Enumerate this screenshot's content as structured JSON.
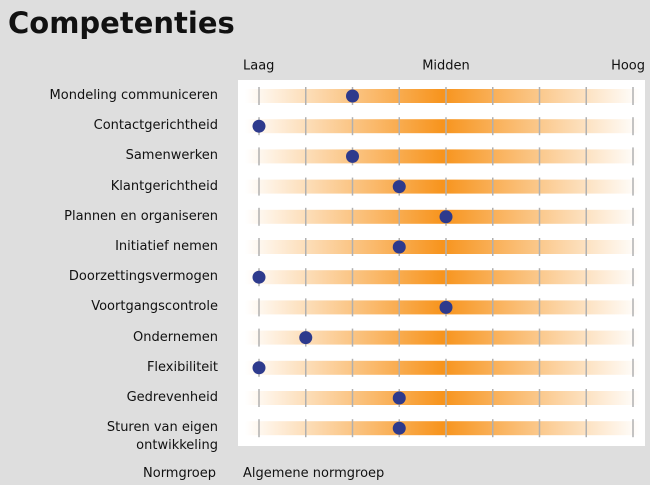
{
  "title": "Competenties",
  "chart_data": {
    "type": "dot",
    "categories": [
      "Mondeling communiceren",
      "Contactgerichtheid",
      "Samenwerken",
      "Klantgerichtheid",
      "Plannen en organiseren",
      "Initiatief nemen",
      "Doorzettingsvermogen",
      "Voortgangscontrole",
      "Ondernemen",
      "Flexibiliteit",
      "Gedrevenheid",
      "Sturen van eigen ontwikkeling"
    ],
    "values": [
      3,
      1,
      3,
      4,
      5,
      4,
      1,
      5,
      2,
      1,
      4,
      4
    ],
    "color": "#2e3a8c",
    "xlim": [
      1,
      9
    ],
    "xticks": [
      {
        "value": 1,
        "label": "Laag"
      },
      {
        "value": 5,
        "label": "Midden"
      },
      {
        "value": 9,
        "label": "Hoog"
      }
    ],
    "minor_xticks": [
      1,
      2,
      3,
      4,
      5,
      6,
      7,
      8,
      9
    ],
    "bar_color": "#f7941d"
  },
  "footer": {
    "label": "Normgroep",
    "value": "Algemene normgroep"
  }
}
